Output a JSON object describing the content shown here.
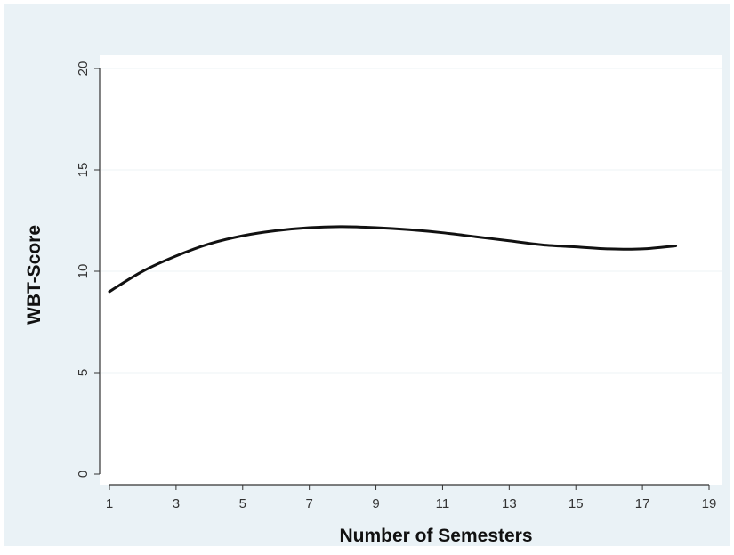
{
  "chart_data": {
    "type": "line",
    "title": "",
    "xlabel": "Number of Semesters",
    "ylabel": "WBT-Score",
    "xlim": [
      1,
      19
    ],
    "ylim": [
      0,
      20
    ],
    "x_ticks": [
      1,
      3,
      5,
      7,
      9,
      11,
      13,
      15,
      17,
      19
    ],
    "y_ticks": [
      0,
      5,
      10,
      15,
      20
    ],
    "grid": true,
    "legend": "none",
    "colors": {
      "outer_background": "#eaf2f6",
      "plot_background": "#ffffff",
      "line": "#111111",
      "axis": "#333333",
      "gridline": "#eef3f6"
    },
    "series": [
      {
        "x": [
          1,
          2,
          3,
          4,
          5,
          6,
          7,
          8,
          9,
          10,
          11,
          12,
          13,
          14,
          15,
          16,
          17,
          18
        ],
        "y": [
          9.0,
          10.0,
          10.75,
          11.35,
          11.75,
          12.0,
          12.15,
          12.2,
          12.15,
          12.05,
          11.9,
          11.7,
          11.5,
          11.3,
          11.2,
          11.1,
          11.1,
          11.25
        ]
      }
    ]
  }
}
